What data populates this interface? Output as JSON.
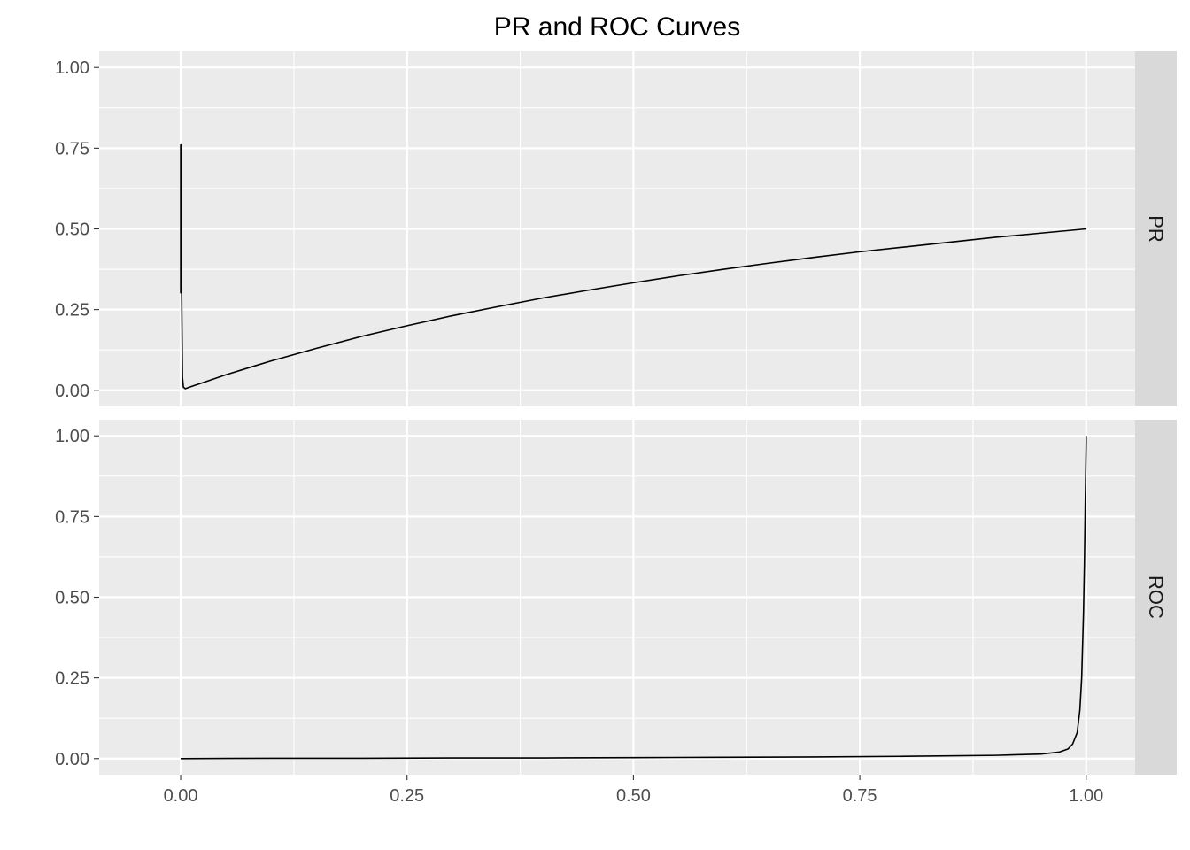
{
  "chart_data": {
    "type": "line",
    "title": "PR and ROC Curves",
    "xlabel": "",
    "ylabel": "",
    "xlim": [
      -0.09,
      1.054
    ],
    "x_ticks": [
      "0.00",
      "0.25",
      "0.50",
      "0.75",
      "1.00"
    ],
    "y_ticks": [
      "0.00",
      "0.25",
      "0.50",
      "0.75",
      "1.00"
    ],
    "grid": true,
    "colors": {
      "panel_background": "#ebebeb",
      "strip_background": "#d9d9d9",
      "grid": "#ffffff",
      "line": "#000000"
    },
    "panels": [
      {
        "label": "PR",
        "ylim": [
          -0.05,
          1.05
        ],
        "series": [
          {
            "points": [
              [
                0.0,
                0.3
              ],
              [
                0.0,
                0.76
              ],
              [
                0.001,
                0.76
              ],
              [
                0.001,
                0.33
              ],
              [
                0.002,
                0.04
              ],
              [
                0.003,
                0.01
              ],
              [
                0.005,
                0.005
              ],
              [
                0.01,
                0.01
              ],
              [
                0.03,
                0.029
              ],
              [
                0.05,
                0.048
              ],
              [
                0.08,
                0.074
              ],
              [
                0.1,
                0.091
              ],
              [
                0.15,
                0.13
              ],
              [
                0.2,
                0.167
              ],
              [
                0.25,
                0.2
              ],
              [
                0.3,
                0.231
              ],
              [
                0.35,
                0.259
              ],
              [
                0.4,
                0.286
              ],
              [
                0.45,
                0.31
              ],
              [
                0.5,
                0.333
              ],
              [
                0.55,
                0.355
              ],
              [
                0.6,
                0.375
              ],
              [
                0.65,
                0.394
              ],
              [
                0.7,
                0.412
              ],
              [
                0.75,
                0.429
              ],
              [
                0.8,
                0.444
              ],
              [
                0.85,
                0.459
              ],
              [
                0.9,
                0.474
              ],
              [
                0.95,
                0.487
              ],
              [
                1.0,
                0.5
              ]
            ]
          }
        ]
      },
      {
        "label": "ROC",
        "ylim": [
          -0.05,
          1.05
        ],
        "series": [
          {
            "points": [
              [
                0.0,
                0.0
              ],
              [
                0.1,
                0.001
              ],
              [
                0.2,
                0.001
              ],
              [
                0.3,
                0.002
              ],
              [
                0.4,
                0.002
              ],
              [
                0.5,
                0.003
              ],
              [
                0.6,
                0.004
              ],
              [
                0.7,
                0.005
              ],
              [
                0.8,
                0.007
              ],
              [
                0.9,
                0.01
              ],
              [
                0.95,
                0.014
              ],
              [
                0.97,
                0.02
              ],
              [
                0.98,
                0.03
              ],
              [
                0.985,
                0.045
              ],
              [
                0.99,
                0.08
              ],
              [
                0.993,
                0.15
              ],
              [
                0.995,
                0.25
              ],
              [
                0.997,
                0.45
              ],
              [
                0.998,
                0.6
              ],
              [
                0.999,
                0.8
              ],
              [
                1.0,
                0.98
              ],
              [
                1.0,
                1.0
              ]
            ]
          }
        ]
      }
    ]
  }
}
